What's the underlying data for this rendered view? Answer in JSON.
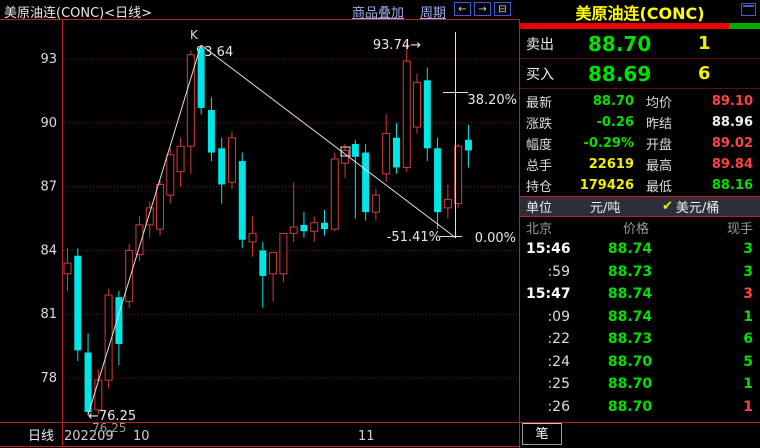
{
  "header": {
    "title": "美原油连(CONC)<日线>",
    "menu_overlay": "商品叠加",
    "menu_period": "周期",
    "icon_back": "←",
    "icon_forward": "→",
    "icon_split": "⊟"
  },
  "chart": {
    "indicator_label": "K",
    "period_label": "日线",
    "y_ticks": [
      "93",
      "90",
      "87",
      "84",
      "81",
      "78"
    ],
    "x_ticks": [
      {
        "label": "202209",
        "x": 64
      },
      {
        "label": "10",
        "x": 133
      },
      {
        "label": "11",
        "x": 358
      }
    ],
    "annotations": {
      "peak_high": "93.64",
      "second_high": "93.74→",
      "fib_382": "38.20%",
      "fib_neg51": "-51.41%",
      "fib_zero": "0.00%",
      "low_marker": "←76.25",
      "low_value": "76.25"
    }
  },
  "chart_data": {
    "type": "candlestick",
    "title": "美原油连(CONC) 日线",
    "ylabel": "price",
    "y_gridlines": [
      93,
      90,
      87,
      84,
      81,
      78
    ],
    "y_range": [
      76,
      94.5
    ],
    "x_labels": [
      "202209",
      "10",
      "11"
    ],
    "marked_high_1": 93.64,
    "marked_high_2": 93.74,
    "marked_low": 76.25,
    "candles_ohlc": [
      [
        82.9,
        84.1,
        82.1,
        83.4
      ],
      [
        83.75,
        84.1,
        78.8,
        79.3
      ],
      [
        79.2,
        80.1,
        76.25,
        76.4
      ],
      [
        76.5,
        78.4,
        76.3,
        77.9
      ],
      [
        77.9,
        82.2,
        77.5,
        81.9
      ],
      [
        81.8,
        82.1,
        78.6,
        79.6
      ],
      [
        81.6,
        84.3,
        81.3,
        84.0
      ],
      [
        83.8,
        85.6,
        83.5,
        85.2
      ],
      [
        85.2,
        86.3,
        84.6,
        86.0
      ],
      [
        85.0,
        87.3,
        84.7,
        87.1
      ],
      [
        86.6,
        88.8,
        86.2,
        88.5
      ],
      [
        87.7,
        89.3,
        87.0,
        88.9
      ],
      [
        88.9,
        93.4,
        87.6,
        93.2
      ],
      [
        93.5,
        93.64,
        90.4,
        90.7
      ],
      [
        90.6,
        91.2,
        88.2,
        88.6
      ],
      [
        88.8,
        89.3,
        86.2,
        87.1
      ],
      [
        87.2,
        89.6,
        86.9,
        89.3
      ],
      [
        88.2,
        88.6,
        84.1,
        84.5
      ],
      [
        84.4,
        85.6,
        83.7,
        84.8
      ],
      [
        84.0,
        84.4,
        81.3,
        82.8
      ],
      [
        82.9,
        83.9,
        81.6,
        83.9
      ],
      [
        82.9,
        84.8,
        82.5,
        84.8
      ],
      [
        84.8,
        87.2,
        84.4,
        85.1
      ],
      [
        85.2,
        85.8,
        84.6,
        84.9
      ],
      [
        84.9,
        85.6,
        84.4,
        85.3
      ],
      [
        85.3,
        85.9,
        84.7,
        85.0
      ],
      [
        85.0,
        88.6,
        84.9,
        88.3
      ],
      [
        88.1,
        89.0,
        87.4,
        88.7
      ],
      [
        89.0,
        89.2,
        85.5,
        88.4
      ],
      [
        88.6,
        89.0,
        85.4,
        85.8
      ],
      [
        85.8,
        86.9,
        85.4,
        86.6
      ],
      [
        87.6,
        90.4,
        87.2,
        89.5
      ],
      [
        89.3,
        90.0,
        87.6,
        87.9
      ],
      [
        87.9,
        93.74,
        87.7,
        92.9
      ],
      [
        89.8,
        92.3,
        89.5,
        91.9
      ],
      [
        92.0,
        92.6,
        88.2,
        88.8
      ],
      [
        88.8,
        89.3,
        85.0,
        85.8
      ],
      [
        86.0,
        87.1,
        85.5,
        86.4
      ],
      [
        86.2,
        89.0,
        86.0,
        88.9
      ],
      [
        89.2,
        89.9,
        87.9,
        88.7
      ]
    ],
    "trendlines": [
      {
        "note": "ascending from low 76.25 to high 93.64"
      },
      {
        "note": "descending from high 93.64 to 0.00% measure point"
      },
      {
        "note": "vertical measure line with 38.20% and 0.00% ticks"
      }
    ]
  },
  "quote_panel": {
    "title": "美原油连(CONC)",
    "ask": {
      "label": "卖出",
      "price": "88.70",
      "qty": "1"
    },
    "bid": {
      "label": "买入",
      "price": "88.69",
      "qty": "6"
    },
    "volume_bar": {
      "red_pct": 87,
      "green_pct": 13
    },
    "stats": [
      {
        "l1": "最新",
        "v1": "88.70",
        "c1": "green",
        "l2": "均价",
        "v2": "89.10",
        "c2": "red"
      },
      {
        "l1": "涨跌",
        "v1": "-0.26",
        "c1": "green",
        "l2": "昨结",
        "v2": "88.96",
        "c2": "white"
      },
      {
        "l1": "幅度",
        "v1": "-0.29%",
        "c1": "green",
        "l2": "开盘",
        "v2": "89.02",
        "c2": "red"
      },
      {
        "l1": "总手",
        "v1": "22619",
        "c1": "yellow",
        "l2": "最高",
        "v2": "89.84",
        "c2": "red"
      },
      {
        "l1": "持仓",
        "v1": "179426",
        "c1": "yellow",
        "l2": "最低",
        "v2": "88.16",
        "c2": "green"
      }
    ],
    "unit_row": {
      "label": "单位",
      "option1": "元/吨",
      "check": "✔",
      "option2": "美元/桶"
    },
    "tick_table": {
      "headers": [
        "北京",
        "价格",
        "现手"
      ],
      "rows": [
        {
          "time": "15:46",
          "price": "88.74",
          "vol": "3",
          "vol_color": "green",
          "bold": true
        },
        {
          "time": ":59",
          "price": "88.73",
          "vol": "3",
          "vol_color": "green",
          "bold": false
        },
        {
          "time": "15:47",
          "price": "88.74",
          "vol": "3",
          "vol_color": "red",
          "bold": true
        },
        {
          "time": ":09",
          "price": "88.74",
          "vol": "1",
          "vol_color": "green",
          "bold": false
        },
        {
          "time": ":22",
          "price": "88.73",
          "vol": "6",
          "vol_color": "green",
          "bold": false
        },
        {
          "time": ":24",
          "price": "88.70",
          "vol": "5",
          "vol_color": "green",
          "bold": false
        },
        {
          "time": ":25",
          "price": "88.70",
          "vol": "1",
          "vol_color": "green",
          "bold": false
        },
        {
          "time": ":26",
          "price": "88.70",
          "vol": "1",
          "vol_color": "red",
          "bold": false
        }
      ]
    },
    "bottom_tab": "笔"
  },
  "colors": {
    "up_candle": "#d23c3c",
    "down_candle": "#00e6e6",
    "frame_red": "#b32424",
    "grid_red": "#6e1d1d",
    "trendline_white": "#e0e0e0",
    "green": "#00e000",
    "red": "#ff4242",
    "yellow": "#f0f000",
    "title_yellow": "#ffff00"
  }
}
